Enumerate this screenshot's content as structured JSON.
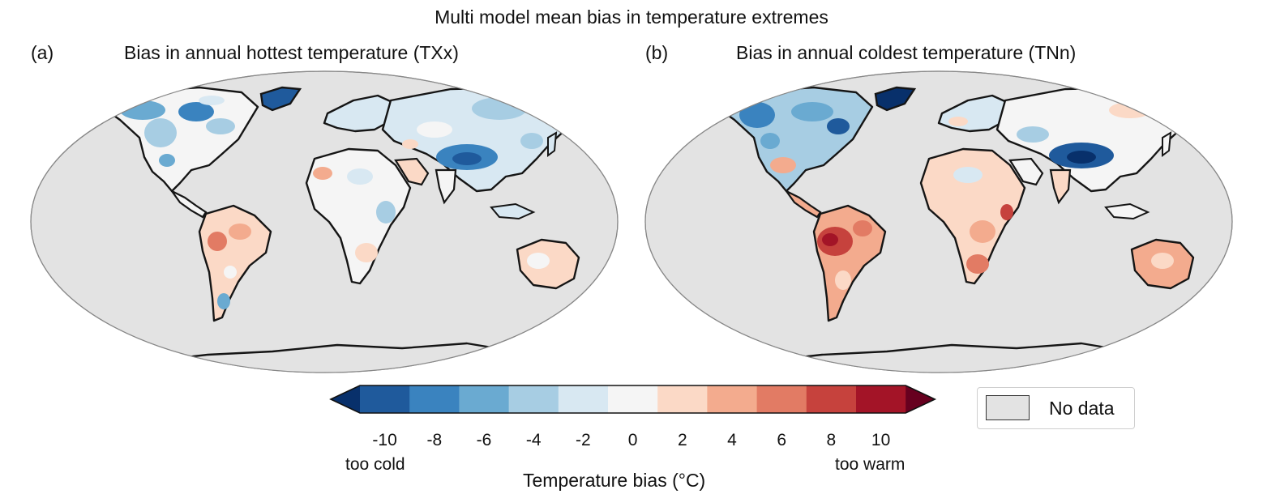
{
  "figure": {
    "title": "Multi model mean bias in temperature extremes"
  },
  "panels": [
    {
      "letter": "(a)",
      "title": "Bias in annual hottest temperature (TXx)"
    },
    {
      "letter": "(b)",
      "title": "Bias in annual coldest temperature (TNn)"
    }
  ],
  "colorbar": {
    "label": "Temperature bias (°C)",
    "low_label": "too cold",
    "high_label": "too warm",
    "ticks": [
      "-10",
      "-8",
      "-6",
      "-4",
      "-2",
      "0",
      "2",
      "4",
      "6",
      "8",
      "10"
    ],
    "colors": [
      "#08306b",
      "#1f5a9c",
      "#3a83bf",
      "#6aaad1",
      "#a7cde3",
      "#d8e8f2",
      "#f5f5f5",
      "#fbd9c6",
      "#f3ab8e",
      "#e27b64",
      "#c6423d",
      "#a31427",
      "#67001f"
    ],
    "extend": "both"
  },
  "legend": {
    "label": "No data",
    "color": "#e3e3e3"
  },
  "map": {
    "projection": "Robinson-like (world)",
    "land_outline": "#111111",
    "ocean_fill": "#e3e3e3"
  }
}
